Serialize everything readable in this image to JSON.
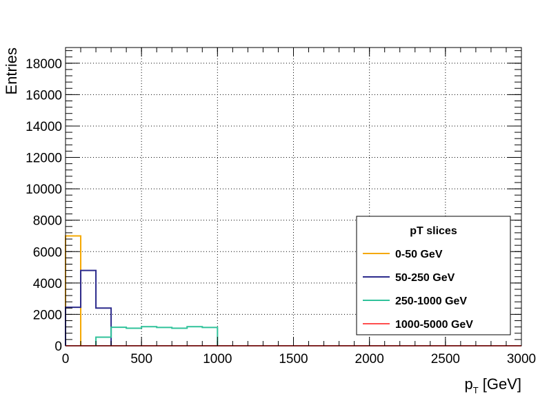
{
  "chart_data": {
    "type": "step-histogram",
    "title": "",
    "xlabel_main": "p",
    "xlabel_sub": "T",
    "xlabel_unit": "[GeV]",
    "ylabel": "Entries",
    "xlim": [
      0,
      3000
    ],
    "ylim": [
      0,
      19000
    ],
    "x_tick_labels": [
      "0",
      "500",
      "1000",
      "1500",
      "2000",
      "2500",
      "3000"
    ],
    "y_tick_labels": [
      "0",
      "2000",
      "4000",
      "6000",
      "8000",
      "10000",
      "12000",
      "14000",
      "16000",
      "18000"
    ],
    "grid": true,
    "legend": {
      "title": "pT slices",
      "placement": "bottom-right"
    },
    "bin_width": 100,
    "series": [
      {
        "name": "0-50 GeV",
        "color": "#f5a800",
        "bin_edges": [
          0,
          100
        ],
        "values": [
          7000
        ]
      },
      {
        "name": "50-250 GeV",
        "color": "#2b2a8c",
        "bin_edges": [
          0,
          100,
          200,
          300
        ],
        "values": [
          2450,
          4800,
          2400
        ]
      },
      {
        "name": "250-1000 GeV",
        "color": "#2fc29a",
        "bin_edges": [
          200,
          300,
          400,
          500,
          600,
          700,
          800,
          900,
          1000
        ],
        "values": [
          550,
          1180,
          1120,
          1220,
          1170,
          1120,
          1220,
          1170
        ]
      },
      {
        "name": "1000-5000 GeV",
        "color": "#ff4d4d",
        "bin_edges": [
          0,
          3000
        ],
        "values": [
          0
        ]
      }
    ]
  }
}
